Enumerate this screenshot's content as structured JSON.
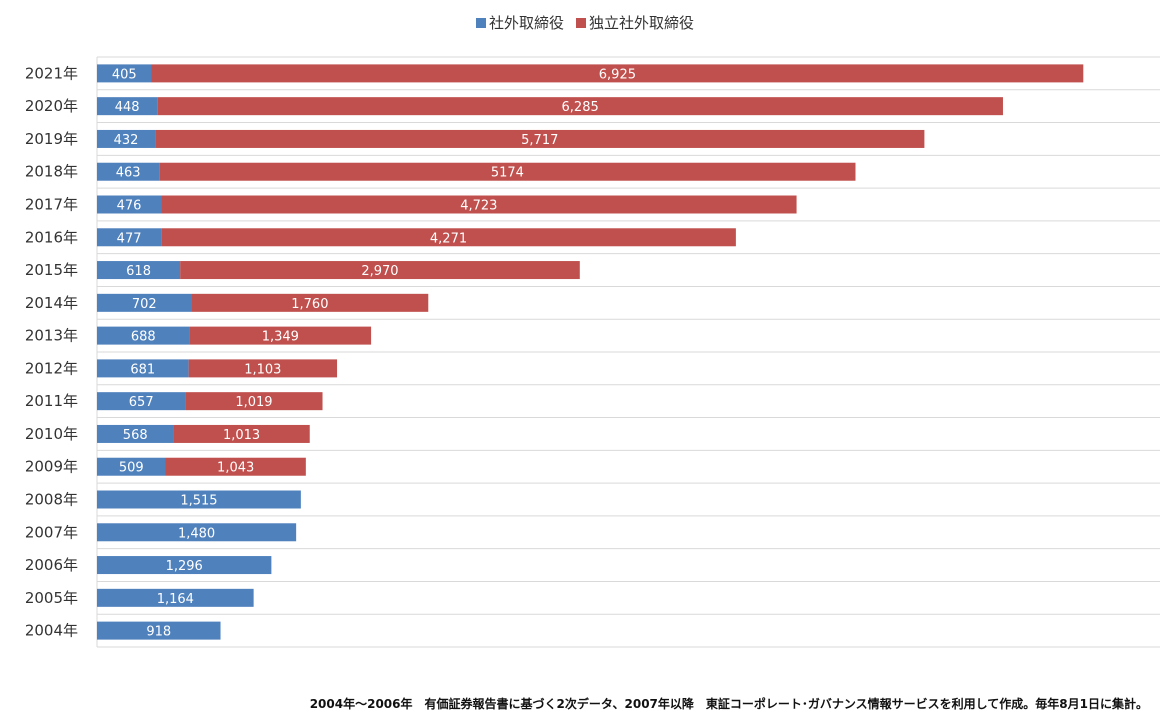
{
  "chart_data": {
    "type": "bar",
    "orientation": "horizontal",
    "stacked": true,
    "categories": [
      "2021年",
      "2020年",
      "2019年",
      "2018年",
      "2017年",
      "2016年",
      "2015年",
      "2014年",
      "2013年",
      "2012年",
      "2011年",
      "2010年",
      "2009年",
      "2008年",
      "2007年",
      "2006年",
      "2005年",
      "2004年"
    ],
    "series": [
      {
        "name": "社外取締役",
        "color": "#4f81bd",
        "values": [
          405,
          448,
          432,
          463,
          476,
          477,
          618,
          702,
          688,
          681,
          657,
          568,
          509,
          1515,
          1480,
          1296,
          1164,
          918
        ],
        "labels": [
          "405",
          "448",
          "432",
          "463",
          "476",
          "477",
          "618",
          "702",
          "688",
          "681",
          "657",
          "568",
          "509",
          "1,515",
          "1,480",
          "1,296",
          "1,164",
          "918"
        ]
      },
      {
        "name": "独立社外取締役",
        "color": "#c0504d",
        "values": [
          6925,
          6285,
          5717,
          5174,
          4723,
          4271,
          2970,
          1760,
          1349,
          1103,
          1019,
          1013,
          1043,
          null,
          null,
          null,
          null,
          null
        ],
        "labels": [
          "6,925",
          "6,285",
          "5,717",
          "5174",
          "4,723",
          "4,271",
          "2,970",
          "1,760",
          "1,349",
          "1,103",
          "1,019",
          "1,013",
          "1,043",
          "",
          "",
          "",
          "",
          ""
        ]
      }
    ],
    "xlim": [
      0,
      7900
    ],
    "grid": "horizontal separators",
    "legend": "top-center",
    "note": "2004年～2006年　有価証券報告書に基づく2次データ、2007年以降　東証コーポレート･ガバナンス情報サービスを利用して作成。毎年8月1日に集計。"
  }
}
